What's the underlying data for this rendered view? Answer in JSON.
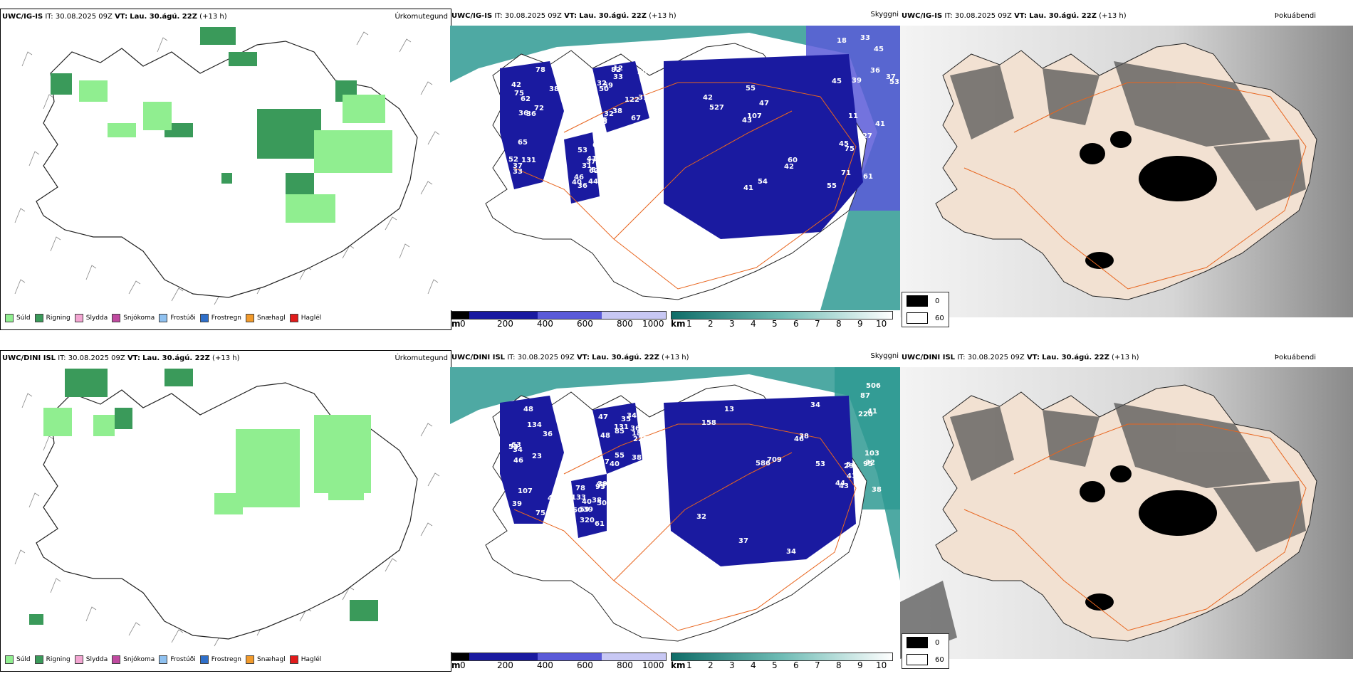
{
  "rows": [
    {
      "model": "UWC/IG-IS",
      "it_label": "IT:",
      "it_value": "30.08.2025 09Z",
      "vt_label": "VT:",
      "vt_value": "Lau. 30.ágú. 22Z",
      "lead": "(+13 h)",
      "cloud_numbers": [
        "58",
        "50",
        "45",
        "31",
        "36",
        "37",
        "33",
        "47",
        "46",
        "39",
        "52",
        "32",
        "55",
        "41",
        "41",
        "42",
        "12",
        "11",
        "62",
        "37",
        "36",
        "38",
        "43",
        "53",
        "45",
        "65",
        "67",
        "55",
        "58",
        "61",
        "62",
        "59",
        "42",
        "36",
        "53",
        "72",
        "56",
        "41",
        "37",
        "45",
        "38",
        "35",
        "60",
        "44",
        "75",
        "33",
        "35",
        "54",
        "76",
        "33",
        "36",
        "32",
        "42",
        "69",
        "71",
        "78",
        "82",
        "107",
        "113",
        "127",
        "131",
        "122",
        "527",
        "40",
        "18",
        "75",
        "31"
      ]
    },
    {
      "model": "UWC/DINI ISL",
      "it_label": "IT:",
      "it_value": "30.08.2025 09Z",
      "vt_label": "VT:",
      "vt_value": "Lau. 30.ágú. 22Z",
      "lead": "(+13 h)",
      "cloud_numbers": [
        "48",
        "34",
        "29",
        "39",
        "32",
        "46",
        "47",
        "46",
        "50",
        "41",
        "23",
        "37",
        "13",
        "59",
        "46",
        "75",
        "55",
        "34",
        "38",
        "41",
        "34",
        "48",
        "54",
        "50",
        "44",
        "63",
        "85",
        "53",
        "61",
        "43",
        "45",
        "35",
        "32",
        "40",
        "38",
        "49",
        "36",
        "37",
        "39",
        "87",
        "39",
        "40",
        "34",
        "78",
        "40",
        "36",
        "38",
        "38",
        "133",
        "103",
        "134",
        "183",
        "709",
        "95",
        "506",
        "107",
        "131",
        "586",
        "577",
        "220",
        "280",
        "222",
        "158",
        "320",
        "95",
        "53"
      ]
    }
  ],
  "panel_titles": {
    "precip": "Úrkomutegund",
    "cloud": "Skyggni",
    "fog": "Þokuábendi"
  },
  "precip_legend": [
    {
      "label": "Súld",
      "color": "#90ee90"
    },
    {
      "label": "Rigning",
      "color": "#3a9a5a"
    },
    {
      "label": "Slydda",
      "color": "#f3a6d2"
    },
    {
      "label": "Snjókoma",
      "color": "#c04aa0"
    },
    {
      "label": "Frostúði",
      "color": "#8fc1f0"
    },
    {
      "label": "Frostregn",
      "color": "#2f6fc9"
    },
    {
      "label": "Snæhagl",
      "color": "#f19a2b"
    },
    {
      "label": "Haglél",
      "color": "#e11b1b"
    }
  ],
  "cloud_scale": {
    "unit": "m",
    "ticks": [
      "0",
      "200",
      "400",
      "600",
      "800",
      "1000"
    ]
  },
  "vis_scale": {
    "unit": "km",
    "ticks": [
      "1",
      "2",
      "3",
      "4",
      "5",
      "6",
      "7",
      "8",
      "9",
      "10"
    ]
  },
  "fog_key": [
    {
      "label": "0",
      "color": "#000000"
    },
    {
      "label": "60",
      "color": "#ffffff"
    }
  ],
  "colors": {
    "land": "#ffffff",
    "ocean_vis": "#2f9a93",
    "cloud_base": "#1a1aa0",
    "fog_land": "#f2e1d2",
    "roads": "#e8651e"
  }
}
